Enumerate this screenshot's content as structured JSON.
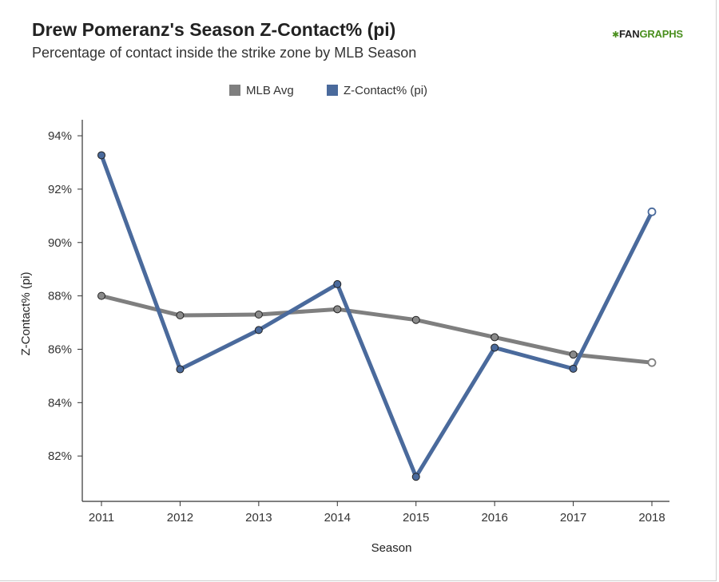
{
  "brand": {
    "mark": "✱",
    "part1": "FAN",
    "part2": "GRAPHS"
  },
  "colors": {
    "mlb": "#7f7f7f",
    "player": "#4a6a9c",
    "marker_mlb": "#8a8a8a",
    "marker_player": "#4a6a9c"
  },
  "chart_data": {
    "type": "line",
    "title": "Drew Pomeranz's Season Z-Contact% (pi)",
    "subtitle": "Percentage of contact inside the strike zone by MLB Season",
    "xlabel": "Season",
    "ylabel": "Z-Contact% (pi)",
    "categories": [
      "2011",
      "2012",
      "2013",
      "2014",
      "2015",
      "2016",
      "2017",
      "2018"
    ],
    "ylim": [
      80.3,
      94.6
    ],
    "yticks": [
      82,
      84,
      86,
      88,
      90,
      92,
      94
    ],
    "ytick_labels": [
      "82%",
      "84%",
      "86%",
      "88%",
      "90%",
      "92%",
      "94%"
    ],
    "legend_position": "top-center",
    "series": [
      {
        "name": "MLB Avg",
        "values": [
          88.0,
          87.27,
          87.3,
          87.5,
          87.1,
          86.45,
          85.8,
          85.5
        ],
        "last_point_hollow": true
      },
      {
        "name": "Z-Contact% (pi)",
        "values": [
          93.27,
          85.25,
          86.72,
          88.44,
          81.22,
          86.06,
          85.27,
          91.15
        ],
        "last_point_hollow": true
      }
    ]
  }
}
